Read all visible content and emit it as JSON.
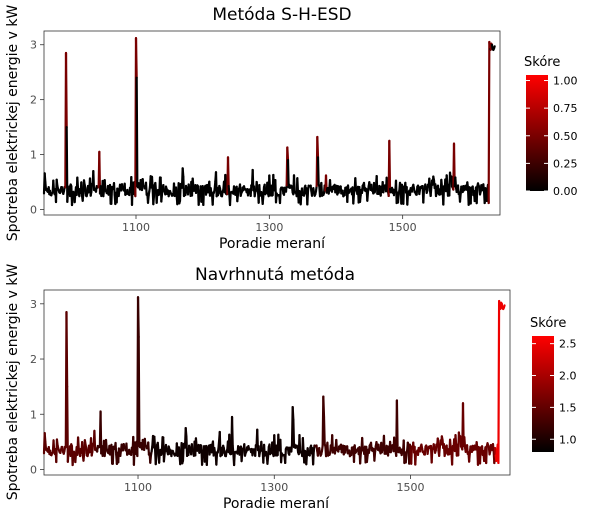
{
  "chart_data": [
    {
      "type": "line",
      "title": "Metóda S-H-ESD",
      "xlabel": "Poradie meraní",
      "ylabel": "Spotreba elektrickej energie v kW",
      "xlim": [
        962,
        1646
      ],
      "ylim": [
        -0.1,
        3.25
      ],
      "x_ticks": [
        1100,
        1300,
        1500
      ],
      "y_ticks": [
        0,
        1,
        2,
        3
      ],
      "grid": false,
      "color_scale": {
        "title": "Skóre",
        "min": 0,
        "max": 1.05,
        "low_color": "#000000",
        "high_color": "#ff0000",
        "ticks": [
          0.0,
          0.25,
          0.5,
          0.75,
          1.0
        ],
        "tick_labels": [
          "0.00",
          "0.25",
          "0.50",
          "0.75",
          "1.00"
        ]
      },
      "anomalies": [
        {
          "x": 995,
          "y": 2.85,
          "score": 1.0
        },
        {
          "x": 1045,
          "y": 1.05,
          "score": 1.0
        },
        {
          "x": 1100,
          "y": 3.12,
          "score": 1.0
        },
        {
          "x": 1238,
          "y": 0.95,
          "score": 1.0
        },
        {
          "x": 1327,
          "y": 1.13,
          "score": 1.0
        },
        {
          "x": 1372,
          "y": 1.32,
          "score": 1.0
        },
        {
          "x": 1385,
          "y": 0.62,
          "score": 1.0
        },
        {
          "x": 1480,
          "y": 1.25,
          "score": 1.0
        },
        {
          "x": 1577,
          "y": 1.2,
          "score": 1.0
        },
        {
          "x": 1630,
          "y": 3.05,
          "score": 1.0
        },
        {
          "x": 1633,
          "y": 2.95,
          "score": 1.0
        }
      ]
    },
    {
      "type": "line",
      "title": "Navrhnutá metóda",
      "xlabel": "Poradie meraní",
      "ylabel": "Spotreba elektrickej energie v kW",
      "xlim": [
        962,
        1646
      ],
      "ylim": [
        -0.1,
        3.25
      ],
      "x_ticks": [
        1100,
        1300,
        1500
      ],
      "y_ticks": [
        0,
        1,
        2,
        3
      ],
      "grid": false,
      "color_scale": {
        "title": "Skóre",
        "min": 0.8,
        "max": 2.62,
        "low_color": "#000000",
        "high_color": "#ff0000",
        "ticks": [
          1.0,
          1.5,
          2.0,
          2.5
        ],
        "tick_labels": [
          "1.0",
          "1.5",
          "2.0",
          "2.5"
        ]
      },
      "score_regions": [
        {
          "from": 962,
          "to": 1040,
          "score": 1.45
        },
        {
          "from": 1040,
          "to": 1120,
          "score": 1.2
        },
        {
          "from": 1120,
          "to": 1360,
          "score": 0.9
        },
        {
          "from": 1360,
          "to": 1500,
          "score": 1.25
        },
        {
          "from": 1500,
          "to": 1625,
          "score": 1.55
        },
        {
          "from": 1625,
          "to": 1646,
          "score": 2.5
        }
      ]
    }
  ]
}
